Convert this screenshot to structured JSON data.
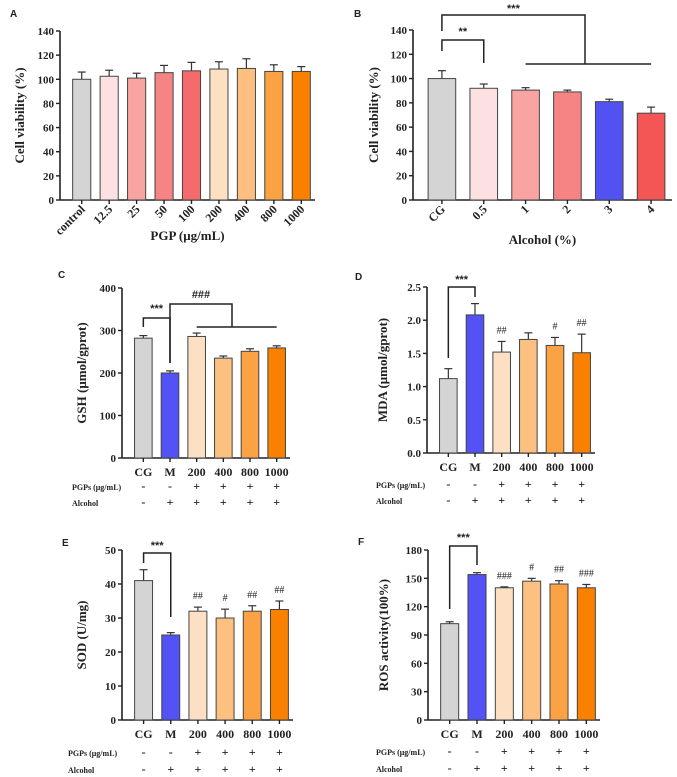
{
  "chart_data": [
    {
      "type": "bar",
      "panel": "A",
      "categories": [
        "control",
        "12.5",
        "25",
        "50",
        "100",
        "200",
        "400",
        "800",
        "1000"
      ],
      "values": [
        100,
        102.5,
        101,
        105.5,
        107,
        108.5,
        109,
        106.5,
        106.5
      ],
      "errors": [
        6,
        5,
        4,
        6,
        7,
        6,
        8,
        5.5,
        4
      ],
      "colors": [
        "#d4d4d4",
        "#fde0e2",
        "#f9a3a3",
        "#f78484",
        "#f56a6a",
        "#fddfc2",
        "#fcbf80",
        "#fba244",
        "#fa8000"
      ],
      "xlabel": "PGP (μg/mL)",
      "ylabel": "Cell viability (%)",
      "ylim": [
        0,
        140
      ],
      "yticks": [
        0,
        20,
        40,
        60,
        80,
        100,
        120,
        140
      ],
      "brackets": [],
      "bar_labels": []
    },
    {
      "type": "bar",
      "panel": "B",
      "categories": [
        "CG",
        "0.5",
        "1",
        "2",
        "3",
        "4"
      ],
      "values": [
        100,
        92,
        90.5,
        89,
        81,
        71.5
      ],
      "errors": [
        6.5,
        3.5,
        2,
        1.5,
        2,
        5
      ],
      "colors": [
        "#d4d4d4",
        "#fde0e2",
        "#f9a3a3",
        "#f78484",
        "#5252f2",
        "#f45656"
      ],
      "xlabel": "Alcohol (%)",
      "ylabel": "Cell viability (%)",
      "ylim": [
        0,
        140
      ],
      "yticks": [
        0,
        20,
        40,
        60,
        80,
        100,
        120,
        140
      ],
      "brackets": [
        {
          "label": "**",
          "from": 0,
          "to": 1
        },
        {
          "label": "***",
          "from": 0,
          "to_range": [
            2,
            5
          ]
        }
      ],
      "bar_labels": []
    },
    {
      "type": "bar",
      "panel": "C",
      "categories": [
        "CG",
        "M",
        "200",
        "400",
        "800",
        "1000"
      ],
      "values": [
        282,
        200,
        286,
        235,
        251,
        259
      ],
      "errors": [
        6,
        5,
        8,
        5,
        6,
        5
      ],
      "colors": [
        "#d4d4d4",
        "#5252f5",
        "#fde0c4",
        "#fcc080",
        "#fba244",
        "#fa8000"
      ],
      "xlabel": "",
      "ylabel": "GSH (μmol/gprot)",
      "ylim": [
        0,
        400
      ],
      "yticks": [
        0,
        100,
        200,
        300,
        400
      ],
      "brackets": [
        {
          "label": "***",
          "from": 0,
          "to": 1
        },
        {
          "label": "###",
          "from": 1,
          "to_range": [
            2,
            5
          ]
        }
      ],
      "bar_labels": [],
      "treatments": [
        {
          "label": "PGPs (μg/mL)",
          "values": [
            "-",
            "-",
            "+",
            "+",
            "+",
            "+"
          ]
        },
        {
          "label": "Alcohol",
          "values": [
            "-",
            "+",
            "+",
            "+",
            "+",
            "+"
          ]
        }
      ]
    },
    {
      "type": "bar",
      "panel": "D",
      "categories": [
        "CG",
        "M",
        "200",
        "400",
        "800",
        "1000"
      ],
      "values": [
        1.12,
        2.08,
        1.52,
        1.71,
        1.62,
        1.51
      ],
      "errors": [
        0.15,
        0.17,
        0.16,
        0.1,
        0.12,
        0.28
      ],
      "colors": [
        "#d4d4d4",
        "#5252f5",
        "#fde0c4",
        "#fcc080",
        "#fba244",
        "#fa8000"
      ],
      "xlabel": "",
      "ylabel": "MDA (μmol/gprot)",
      "ylim": [
        0,
        2.5
      ],
      "yticks": [
        "0.0",
        "0.5",
        "1.0",
        "1.5",
        "2.0",
        "2.5"
      ],
      "brackets": [
        {
          "label": "***",
          "from": 0,
          "to": 1
        }
      ],
      "bar_labels": [
        "",
        "",
        "##",
        "",
        "#",
        "##"
      ],
      "treatments": [
        {
          "label": "PGPs (μg/mL)",
          "values": [
            "-",
            "-",
            "+",
            "+",
            "+",
            "+"
          ]
        },
        {
          "label": "Alcohol",
          "values": [
            "-",
            "+",
            "+",
            "+",
            "+",
            "+"
          ]
        }
      ]
    },
    {
      "type": "bar",
      "panel": "E",
      "categories": [
        "CG",
        "M",
        "200",
        "400",
        "800",
        "1000"
      ],
      "values": [
        41,
        25,
        32,
        30,
        32,
        32.5
      ],
      "errors": [
        3.2,
        0.7,
        1.2,
        2.6,
        1.6,
        2.5
      ],
      "colors": [
        "#d4d4d4",
        "#5252f5",
        "#fde0c4",
        "#fcc080",
        "#fba244",
        "#fa8000"
      ],
      "xlabel": "",
      "ylabel": "SOD (U/mg)",
      "ylim": [
        0,
        50
      ],
      "yticks": [
        0,
        10,
        20,
        30,
        40,
        50
      ],
      "brackets": [
        {
          "label": "***",
          "from": 0,
          "to": 1
        }
      ],
      "bar_labels": [
        "",
        "",
        "##",
        "#",
        "##",
        "##"
      ],
      "treatments": [
        {
          "label": "PGPs (μg/mL)",
          "values": [
            "-",
            "-",
            "+",
            "+",
            "+",
            "+"
          ]
        },
        {
          "label": "Alcohol",
          "values": [
            "-",
            "+",
            "+",
            "+",
            "+",
            "+"
          ]
        }
      ]
    },
    {
      "type": "bar",
      "panel": "F",
      "categories": [
        "CG",
        "M",
        "200",
        "400",
        "800",
        "1000"
      ],
      "values": [
        102,
        154,
        140,
        147,
        144,
        140
      ],
      "errors": [
        2,
        2,
        1,
        3,
        3.5,
        3.5
      ],
      "colors": [
        "#d4d4d4",
        "#5252f5",
        "#fde0c4",
        "#fcc080",
        "#fba244",
        "#fa8000"
      ],
      "xlabel": "",
      "ylabel": "ROS activity(100%)",
      "ylim": [
        0,
        180
      ],
      "yticks": [
        0,
        30,
        60,
        90,
        120,
        150,
        180
      ],
      "brackets": [
        {
          "label": "***",
          "from": 0,
          "to": 1
        }
      ],
      "bar_labels": [
        "",
        "",
        "###",
        "#",
        "##",
        "###"
      ],
      "treatments": [
        {
          "label": "PGPs (μg/mL)",
          "values": [
            "-",
            "-",
            "+",
            "+",
            "+",
            "+"
          ]
        },
        {
          "label": "Alcohol",
          "values": [
            "-",
            "+",
            "+",
            "+",
            "+",
            "+"
          ]
        }
      ]
    }
  ]
}
